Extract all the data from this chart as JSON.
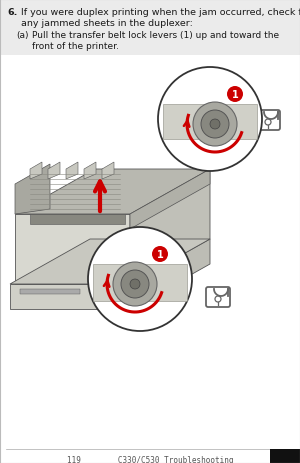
{
  "page_bg": "#ffffff",
  "text_color": "#1a1a1a",
  "gray_light": "#cccccc",
  "gray_mid": "#999999",
  "gray_dark": "#555555",
  "red": "#cc0000",
  "header_bg": "#e0e0d8",
  "title_bold": "6.",
  "title_line1": "If you were duplex printing when the jam occurred, check for",
  "title_line2": "any jammed sheets in the duplexer:",
  "sub_label": "(a)",
  "sub_line1": "Pull the transfer belt lock levers (1) up and toward the",
  "sub_line2": "front of the printer.",
  "footer_text": "119        C330/C530 Troubleshooting",
  "figw": 3.0,
  "figh": 4.64,
  "dpi": 100
}
